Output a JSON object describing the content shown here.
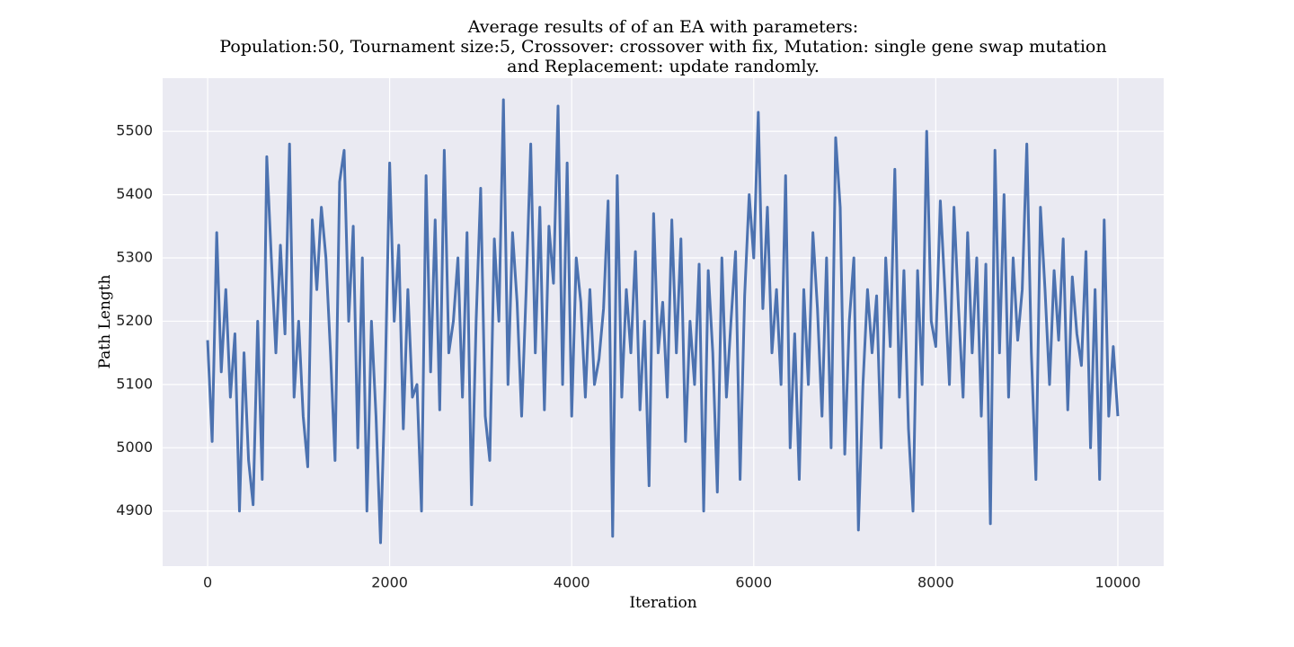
{
  "chart_data": {
    "type": "line",
    "title": [
      "Average results of of an EA with parameters:",
      "Population:50, Tournament size:5, Crossover: crossover with fix, Mutation: single gene swap mutation",
      "and Replacement: update randomly."
    ],
    "xlabel": "Iteration",
    "ylabel": "Path Length",
    "xlim": [
      -494,
      10504
    ],
    "ylim": [
      4813,
      5584
    ],
    "xticks": [
      0,
      2000,
      4000,
      6000,
      8000,
      10000
    ],
    "yticks": [
      4900,
      5000,
      5100,
      5200,
      5300,
      5400,
      5500
    ],
    "grid": true,
    "background": "#eaeaf2",
    "x": [
      0,
      50,
      100,
      150,
      200,
      250,
      300,
      350,
      400,
      450,
      500,
      550,
      600,
      650,
      700,
      750,
      800,
      850,
      900,
      950,
      1000,
      1050,
      1100,
      1150,
      1200,
      1250,
      1300,
      1350,
      1400,
      1450,
      1500,
      1550,
      1600,
      1650,
      1700,
      1750,
      1800,
      1850,
      1900,
      1950,
      2000,
      2050,
      2100,
      2150,
      2200,
      2250,
      2300,
      2350,
      2400,
      2450,
      2500,
      2550,
      2600,
      2650,
      2700,
      2750,
      2800,
      2850,
      2900,
      2950,
      3000,
      3050,
      3100,
      3150,
      3200,
      3250,
      3300,
      3350,
      3400,
      3450,
      3500,
      3550,
      3600,
      3650,
      3700,
      3750,
      3800,
      3850,
      3900,
      3950,
      4000,
      4050,
      4100,
      4150,
      4200,
      4250,
      4300,
      4350,
      4400,
      4450,
      4500,
      4550,
      4600,
      4650,
      4700,
      4750,
      4800,
      4850,
      4900,
      4950,
      5000,
      5050,
      5100,
      5150,
      5200,
      5250,
      5300,
      5350,
      5400,
      5450,
      5500,
      5550,
      5600,
      5650,
      5700,
      5750,
      5800,
      5850,
      5900,
      5950,
      6000,
      6050,
      6100,
      6150,
      6200,
      6250,
      6300,
      6350,
      6400,
      6450,
      6500,
      6550,
      6600,
      6650,
      6700,
      6750,
      6800,
      6850,
      6900,
      6950,
      7000,
      7050,
      7100,
      7150,
      7200,
      7250,
      7300,
      7350,
      7400,
      7450,
      7500,
      7550,
      7600,
      7650,
      7700,
      7750,
      7800,
      7850,
      7900,
      7950,
      8000,
      8050,
      8100,
      8150,
      8200,
      8250,
      8300,
      8350,
      8400,
      8450,
      8500,
      8550,
      8600,
      8650,
      8700,
      8750,
      8800,
      8850,
      8900,
      8950,
      9000,
      9050,
      9100,
      9150,
      9200,
      9250,
      9300,
      9350,
      9400,
      9450,
      9500,
      9550,
      9600,
      9650,
      9700,
      9750,
      9800,
      9850,
      9900,
      9950,
      10000
    ],
    "series": [
      {
        "name": "Path Length",
        "color": "#4c72b0",
        "values": [
          5170,
          5010,
          5340,
          5120,
          5250,
          5080,
          5180,
          4900,
          5150,
          4980,
          4910,
          5200,
          4950,
          5460,
          5300,
          5150,
          5320,
          5180,
          5480,
          5080,
          5200,
          5050,
          4970,
          5360,
          5250,
          5380,
          5300,
          5150,
          4980,
          5420,
          5470,
          5200,
          5350,
          5000,
          5300,
          4900,
          5200,
          5050,
          4850,
          5100,
          5450,
          5200,
          5320,
          5030,
          5250,
          5080,
          5100,
          4900,
          5430,
          5120,
          5360,
          5060,
          5470,
          5150,
          5200,
          5300,
          5080,
          5340,
          4910,
          5200,
          5410,
          5050,
          4980,
          5330,
          5200,
          5550,
          5100,
          5340,
          5230,
          5050,
          5250,
          5480,
          5150,
          5380,
          5060,
          5350,
          5260,
          5540,
          5100,
          5450,
          5050,
          5300,
          5230,
          5080,
          5250,
          5100,
          5140,
          5220,
          5390,
          4860,
          5430,
          5080,
          5250,
          5150,
          5310,
          5060,
          5200,
          4940,
          5370,
          5150,
          5230,
          5080,
          5360,
          5150,
          5330,
          5010,
          5200,
          5100,
          5290,
          4900,
          5280,
          5150,
          4930,
          5300,
          5080,
          5200,
          5310,
          4950,
          5240,
          5400,
          5300,
          5530,
          5220,
          5380,
          5150,
          5250,
          5100,
          5430,
          5000,
          5180,
          4950,
          5250,
          5100,
          5340,
          5220,
          5050,
          5300,
          5000,
          5490,
          5380,
          4990,
          5200,
          5300,
          4870,
          5100,
          5250,
          5150,
          5240,
          5000,
          5300,
          5160,
          5440,
          5080,
          5280,
          5030,
          4900,
          5280,
          5100,
          5500,
          5200,
          5160,
          5390,
          5250,
          5100,
          5380,
          5220,
          5080,
          5340,
          5150,
          5300,
          5050,
          5290,
          4880,
          5470,
          5150,
          5400,
          5080,
          5300,
          5170,
          5250,
          5480,
          5150,
          4950,
          5380,
          5250,
          5100,
          5280,
          5170,
          5330,
          5060,
          5270,
          5180,
          5130,
          5310,
          5000,
          5250,
          4950,
          5360,
          5050,
          5160,
          5050
        ]
      }
    ]
  }
}
